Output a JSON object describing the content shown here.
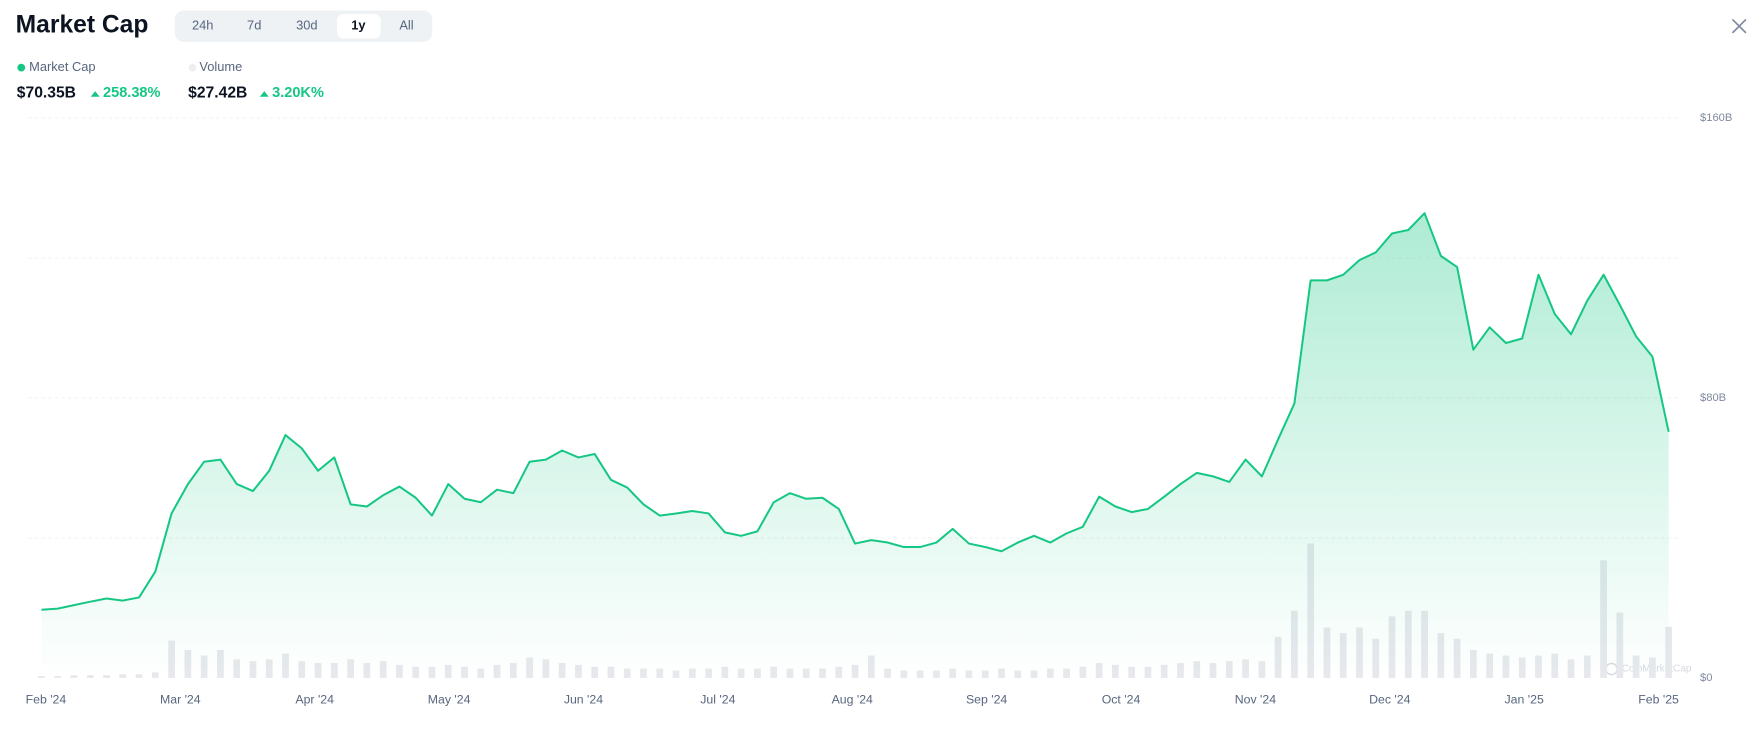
{
  "header": {
    "title": "Market Cap",
    "tabs": [
      "24h",
      "7d",
      "30d",
      "1y",
      "All"
    ],
    "active_tab": 3
  },
  "summary": [
    {
      "value": "$70.35B",
      "change": "258.38%"
    },
    {
      "value": "$27.42B",
      "change": "3.20K%"
    }
  ],
  "watermark": "CoinMarketCap",
  "chart_data": {
    "type": "line",
    "xticks": [
      "Feb '24",
      "Mar '24",
      "Apr '24",
      "May '24",
      "Jun '24",
      "Jul '24",
      "Aug '24",
      "Sep '24",
      "Oct '24",
      "Nov '24",
      "Dec '24",
      "Jan '25",
      "Feb '25"
    ],
    "ylim": [
      0,
      160
    ],
    "yticks": [
      {
        "value": 0,
        "label": "$0"
      },
      {
        "value": 80,
        "label": "$80B"
      },
      {
        "value": 160,
        "label": "$160B"
      }
    ],
    "ygrid": [
      40,
      80,
      120,
      160
    ],
    "y2lim": [
      0,
      300
    ],
    "series": [
      {
        "name": "Market Cap",
        "color": "#16c784",
        "values": [
          19.5,
          19.8,
          20.8,
          21.8,
          22.7,
          22.1,
          23.0,
          30.4,
          47.0,
          55.4,
          61.8,
          62.4,
          55.4,
          53.4,
          59.2,
          69.4,
          65.6,
          59.2,
          63.0,
          49.6,
          49.0,
          52.2,
          54.7,
          51.5,
          46.4,
          55.4,
          51.2,
          50.2,
          53.8,
          52.8,
          61.8,
          62.4,
          65.0,
          63.0,
          64.0,
          56.6,
          54.4,
          49.6,
          46.4,
          47.0,
          47.7,
          47.0,
          41.6,
          40.6,
          41.9,
          50.2,
          52.8,
          51.2,
          51.5,
          48.3,
          38.4,
          39.4,
          38.7,
          37.4,
          37.4,
          38.7,
          42.6,
          38.4,
          37.4,
          36.2,
          38.7,
          40.6,
          38.7,
          41.3,
          43.2,
          51.8,
          49.0,
          47.4,
          48.3,
          51.8,
          55.4,
          58.6,
          57.6,
          56.0,
          62.4,
          57.6,
          68.2,
          78.4,
          113.6,
          113.6,
          115.2,
          119.4,
          121.6,
          127.0,
          128.0,
          132.8,
          120.6,
          117.4,
          93.8,
          100.2,
          95.7,
          97.0,
          115.2,
          104.0,
          98.2,
          107.8,
          115.2,
          106.6,
          97.6,
          91.8,
          70.35
        ]
      },
      {
        "name": "Volume",
        "color": "#e6e8ec",
        "axis": "y2",
        "values": [
          1,
          1,
          1.5,
          1.5,
          1.5,
          2,
          2,
          3,
          20,
          15,
          12,
          15,
          10,
          9,
          10,
          13,
          9,
          8,
          8,
          10,
          8,
          9,
          7,
          6,
          6,
          7,
          6,
          5,
          7,
          8,
          11,
          10,
          8,
          7,
          6,
          6,
          5,
          5,
          5,
          4,
          5,
          5,
          6,
          5,
          5,
          6,
          5,
          5,
          5,
          6,
          7,
          12,
          5,
          4,
          4,
          4,
          5,
          4,
          4,
          5,
          4,
          4,
          5,
          5,
          6,
          8,
          7,
          6,
          6,
          7,
          8,
          9,
          8,
          9,
          10,
          9,
          22,
          36,
          72,
          27,
          24,
          27,
          21,
          33,
          36,
          36,
          24,
          21,
          15,
          13,
          12,
          11,
          12,
          13,
          10,
          12,
          63,
          35,
          12,
          11,
          27.42
        ]
      }
    ]
  }
}
